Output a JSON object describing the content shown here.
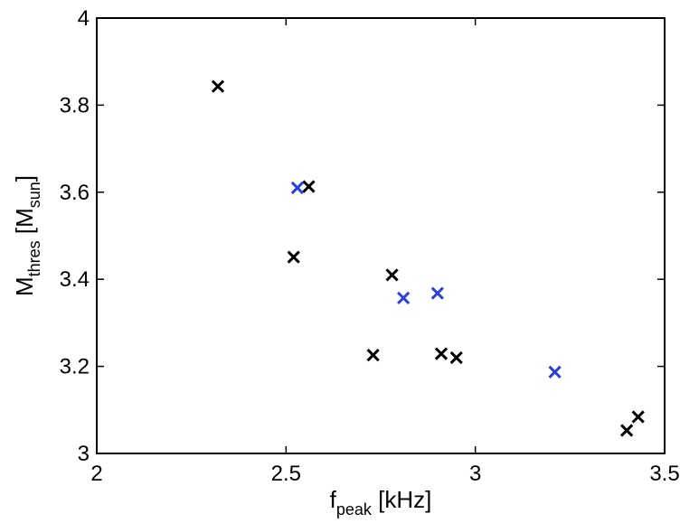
{
  "chart_data": {
    "type": "scatter",
    "title": "",
    "xlabel": {
      "main": "f",
      "sub": "peak",
      "rest": " [kHz]"
    },
    "ylabel": {
      "main": "M",
      "sub": "thres",
      "mid": " [M",
      "sub2": "sun",
      "end": "]"
    },
    "xlim": [
      2,
      3.5
    ],
    "ylim": [
      3,
      4
    ],
    "xticks": [
      2,
      2.5,
      3,
      3.5
    ],
    "xtick_labels": [
      "2",
      "2.5",
      "3",
      "3.5"
    ],
    "yticks": [
      3,
      3.2,
      3.4,
      3.6,
      3.8,
      4
    ],
    "ytick_labels": [
      "3",
      "3.2",
      "3.4",
      "3.6",
      "3.8",
      "4"
    ],
    "grid": false,
    "marker": "x",
    "series": [
      {
        "color": "#000000",
        "points": [
          {
            "x": 2.32,
            "y": 3.843
          },
          {
            "x": 2.56,
            "y": 3.613
          },
          {
            "x": 2.52,
            "y": 3.451
          },
          {
            "x": 2.78,
            "y": 3.41
          },
          {
            "x": 2.73,
            "y": 3.226
          },
          {
            "x": 2.91,
            "y": 3.229
          },
          {
            "x": 2.95,
            "y": 3.22
          },
          {
            "x": 3.4,
            "y": 3.053
          },
          {
            "x": 3.43,
            "y": 3.084
          }
        ]
      },
      {
        "color": "#2b3fe0",
        "points": [
          {
            "x": 2.53,
            "y": 3.61
          },
          {
            "x": 2.81,
            "y": 3.357
          },
          {
            "x": 2.9,
            "y": 3.368
          },
          {
            "x": 3.21,
            "y": 3.187
          }
        ]
      }
    ]
  }
}
